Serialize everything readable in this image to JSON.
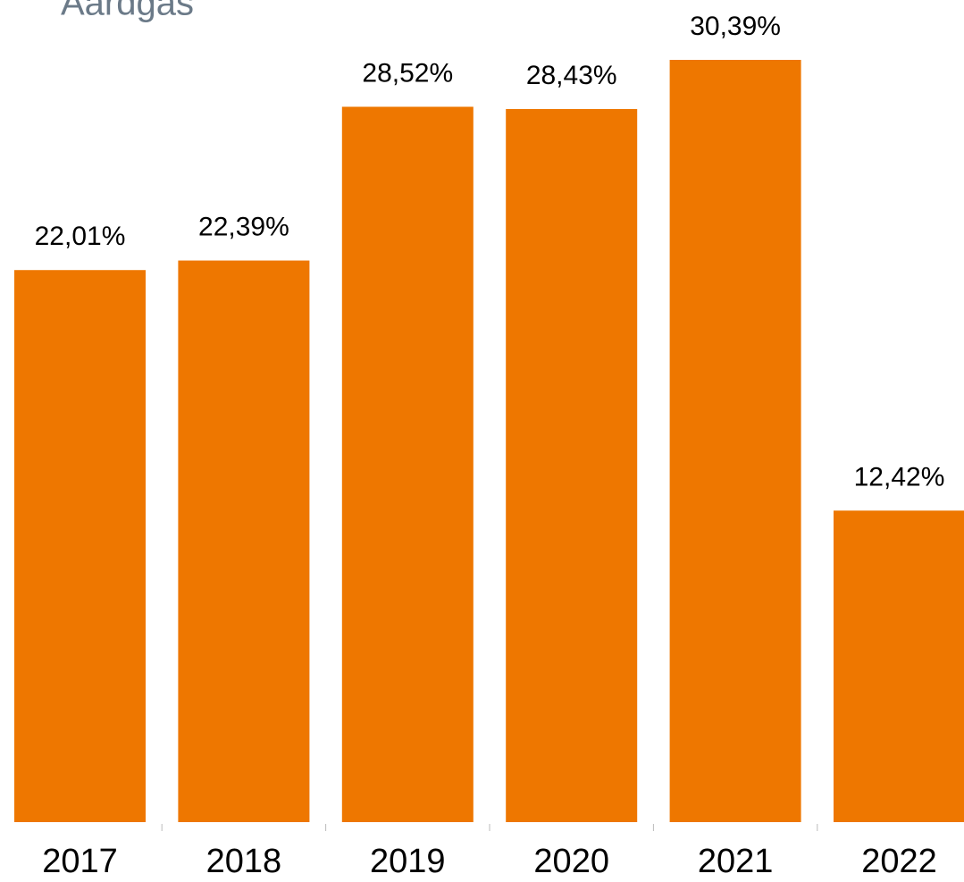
{
  "chart_data": {
    "type": "bar",
    "title": "Aardgas",
    "categories": [
      "2017",
      "2018",
      "2019",
      "2020",
      "2021",
      "2022"
    ],
    "values": [
      22.01,
      22.39,
      28.52,
      28.43,
      30.39,
      12.42
    ],
    "value_labels": [
      "22,01%",
      "22,39%",
      "28,52%",
      "28,43%",
      "30,39%",
      "12,42%"
    ],
    "color": "#ee7700"
  }
}
